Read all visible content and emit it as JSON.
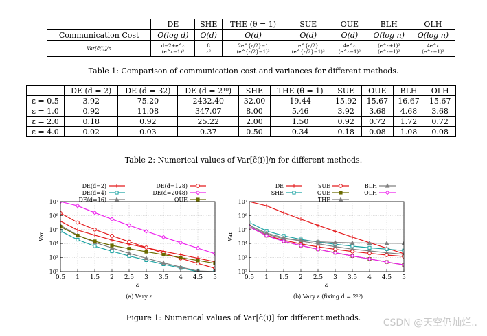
{
  "table1": {
    "caption": "Table 1:  Comparison of communication cost and variances for different methods.",
    "headers": [
      "",
      "DE",
      "SHE",
      "THE (θ = 1)",
      "SUE",
      "OUE",
      "BLH",
      "OLH"
    ],
    "comm_label": "Communication Cost",
    "comm": [
      "O(log d)",
      "O(d)",
      "O(d)",
      "O(d)",
      "O(d)",
      "O(log n)",
      "O(log n)"
    ],
    "var_label": "Var[c̃(i)]/n",
    "var": [
      {
        "num": "d−2+e^ε",
        "den": "(e^ε−1)²"
      },
      {
        "num": "8",
        "den": "ε²"
      },
      {
        "num": "2e^{ε/2}−1",
        "den": "(e^{ε/2}−1)²"
      },
      {
        "num": "e^{ε/2}",
        "den": "(e^{ε/2}−1)²"
      },
      {
        "num": "4e^ε",
        "den": "(e^ε−1)²"
      },
      {
        "num": "(e^ε+1)²",
        "den": "(e^ε−1)²"
      },
      {
        "num": "4e^ε",
        "den": "(e^ε−1)²"
      }
    ]
  },
  "table2": {
    "caption": "Table 2:  Numerical values of Var[c̃(i)]/n for different methods.",
    "headers": [
      "",
      "DE (d = 2)",
      "DE (d = 32)",
      "DE (d = 2¹⁰)",
      "SHE",
      "THE (θ = 1)",
      "SUE",
      "OUE",
      "BLH",
      "OLH"
    ],
    "rows": [
      [
        "ε = 0.5",
        "3.92",
        "75.20",
        "2432.40",
        "32.00",
        "19.44",
        "15.92",
        "15.67",
        "16.67",
        "15.67"
      ],
      [
        "ε = 1.0",
        "0.92",
        "11.08",
        "347.07",
        "8.00",
        "5.46",
        "3.92",
        "3.68",
        "4.68",
        "3.68"
      ],
      [
        "ε = 2.0",
        "0.18",
        "0.92",
        "25.22",
        "2.00",
        "1.50",
        "0.92",
        "0.72",
        "1.72",
        "0.72"
      ],
      [
        "ε = 4.0",
        "0.02",
        "0.03",
        "0.37",
        "0.50",
        "0.34",
        "0.18",
        "0.08",
        "1.08",
        "0.08"
      ]
    ]
  },
  "figure": {
    "caption": "Figure 1: Numerical values of Var[c̃(i)] for different methods.",
    "watermark": "CSDN @天空仍灿烂..",
    "x_ticks": [
      "0.5",
      "1",
      "1.5",
      "2",
      "2.5",
      "3",
      "3.5",
      "4",
      "4.5",
      "5"
    ],
    "y_ticks": [
      "10²",
      "10³",
      "10⁴",
      "10⁵",
      "10⁶",
      "10⁷"
    ],
    "xlabel": "ε",
    "ylabel": "Var"
  },
  "chart_data": [
    {
      "type": "line",
      "caption": "(a) Vary ε",
      "xlabel": "ε",
      "ylabel": "Var",
      "xlim": [
        0.5,
        5
      ],
      "ylim": [
        100,
        10000000
      ],
      "log_y": true,
      "grid": true,
      "legend_position": "top",
      "series": [
        {
          "name": "DE(d=2)",
          "color": "#e41a1c",
          "marker": "plus",
          "x": [
            0.5,
            1,
            1.5,
            2,
            2.5,
            3,
            3.5,
            4,
            4.5,
            5
          ],
          "y": [
            400000,
            92000,
            40000,
            18000,
            9000,
            5000,
            2800,
            1600,
            900,
            500
          ]
        },
        {
          "name": "DE(d=4)",
          "color": "#1ba3a3",
          "marker": "square",
          "x": [
            0.5,
            1,
            1.5,
            2,
            2.5,
            3,
            3.5,
            4,
            4.5,
            5
          ],
          "y": [
            80000,
            19000,
            6500,
            2800,
            1300,
            650,
            330,
            180,
            100,
            55
          ]
        },
        {
          "name": "DE(d=16)",
          "color": "#808080",
          "marker": "triangle",
          "x": [
            0.5,
            1,
            1.5,
            2,
            2.5,
            3,
            3.5,
            4,
            4.5,
            5
          ],
          "y": [
            200000,
            40000,
            12000,
            4800,
            2000,
            900,
            420,
            210,
            110,
            60
          ]
        },
        {
          "name": "DE(d=128)",
          "color": "#e41a1c",
          "marker": "circle",
          "x": [
            0.5,
            1,
            1.5,
            2,
            2.5,
            3,
            3.5,
            4,
            4.5,
            5
          ],
          "y": [
            1500000,
            320000,
            100000,
            36000,
            13500,
            5200,
            2100,
            880,
            380,
            170
          ]
        },
        {
          "name": "DE(d=2048)",
          "color": "#ee22ee",
          "marker": "diamond",
          "x": [
            0.5,
            1,
            1.5,
            2,
            2.5,
            3,
            3.5,
            4,
            4.5,
            5
          ],
          "y": [
            24000000,
            5000000,
            1600000,
            550000,
            200000,
            75000,
            29000,
            11500,
            4700,
            1900
          ]
        },
        {
          "name": "OUE",
          "color": "#6b6b00",
          "marker": "filled-square",
          "x": [
            0.5,
            1,
            1.5,
            2,
            2.5,
            3,
            3.5,
            4,
            4.5,
            5
          ],
          "y": [
            160000,
            37000,
            14500,
            7300,
            4300,
            2600,
            1600,
            1000,
            620,
            390
          ]
        }
      ]
    },
    {
      "type": "line",
      "caption": "(b) Vary ε (fixing d = 2¹⁰)",
      "xlabel": "ε",
      "ylabel": "Var",
      "xlim": [
        0.5,
        5
      ],
      "ylim": [
        100,
        10000000
      ],
      "log_y": true,
      "grid": true,
      "legend_position": "top",
      "series": [
        {
          "name": "DE",
          "color": "#e41a1c",
          "marker": "plus",
          "x": [
            0.5,
            1,
            1.5,
            2,
            2.5,
            3,
            3.5,
            4,
            4.5,
            5
          ],
          "y": [
            24000000,
            5000000,
            1600000,
            550000,
            200000,
            75000,
            29000,
            11500,
            4700,
            1900
          ]
        },
        {
          "name": "SHE",
          "color": "#1ba3a3",
          "marker": "square",
          "x": [
            0.5,
            1,
            1.5,
            2,
            2.5,
            3,
            3.5,
            4,
            4.5,
            5
          ],
          "y": [
            320000,
            80000,
            36000,
            20000,
            12800,
            8900,
            6500,
            5000,
            4000,
            3200
          ]
        },
        {
          "name": "THE",
          "color": "#808080",
          "marker": "triangle",
          "x": [
            0.5,
            1,
            1.5,
            2,
            2.5,
            3,
            3.5,
            4,
            4.5,
            5
          ],
          "y": [
            200000,
            56000,
            26000,
            15000,
            9500,
            6000,
            4000,
            3000,
            2200,
            1700
          ]
        },
        {
          "name": "SUE",
          "color": "#e41a1c",
          "marker": "circle",
          "x": [
            0.5,
            1,
            1.5,
            2,
            2.5,
            3,
            3.5,
            4,
            4.5,
            5
          ],
          "y": [
            160000,
            39000,
            17500,
            9400,
            5800,
            3900,
            2700,
            2000,
            1500,
            1200
          ]
        },
        {
          "name": "OUE",
          "color": "#6b6b00",
          "marker": "filled-square",
          "x": [
            0.5,
            1,
            1.5,
            2,
            2.5,
            3,
            3.5,
            4,
            4.5,
            5
          ],
          "y": [
            156700,
            36800,
            14500,
            7200,
            3900,
            2200,
            1300,
            800,
            480,
            300
          ]
        },
        {
          "name": "BLH",
          "color": "#808080",
          "marker": "triangle",
          "x": [
            0.5,
            1,
            1.5,
            2,
            2.5,
            3,
            3.5,
            4,
            4.5,
            5
          ],
          "y": [
            166700,
            46800,
            22000,
            17200,
            13500,
            12000,
            11200,
            10800,
            10500,
            10400
          ]
        },
        {
          "name": "OLH",
          "color": "#ee22ee",
          "marker": "diamond",
          "x": [
            0.5,
            1,
            1.5,
            2,
            2.5,
            3,
            3.5,
            4,
            4.5,
            5
          ],
          "y": [
            156700,
            36800,
            14500,
            7200,
            3900,
            2200,
            1300,
            800,
            480,
            300
          ]
        }
      ]
    }
  ]
}
